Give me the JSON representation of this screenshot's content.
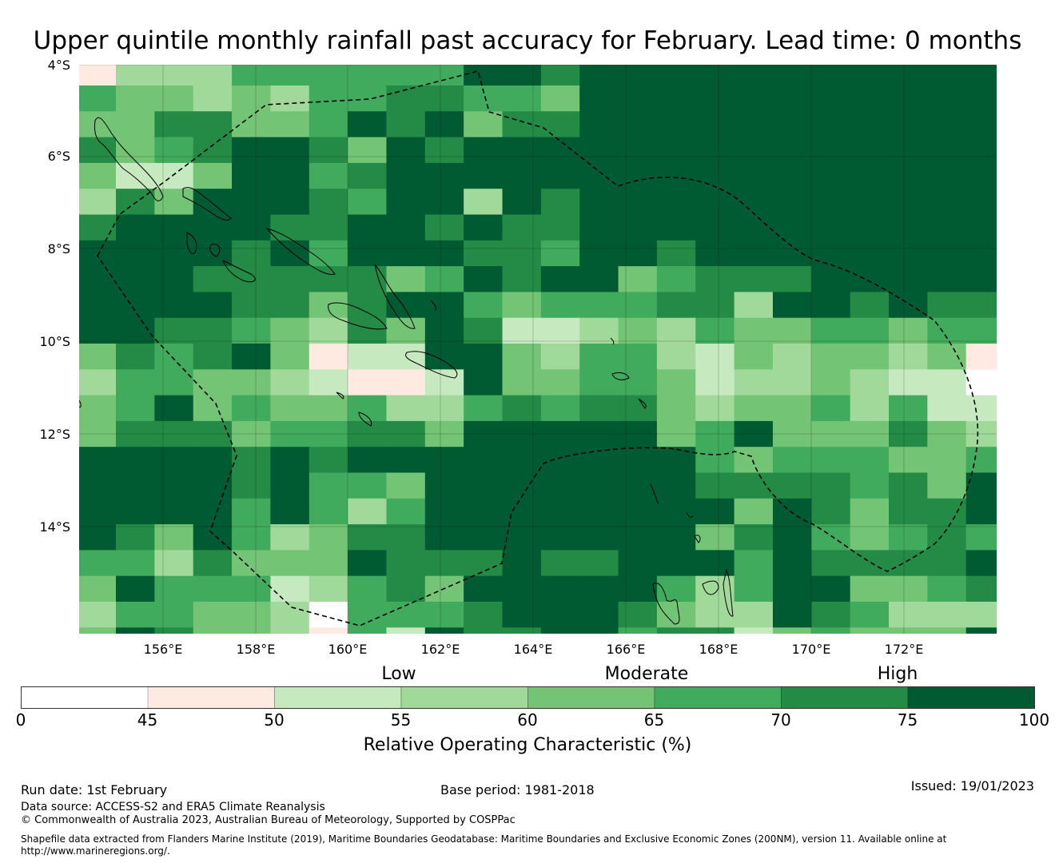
{
  "title": "Upper quintile monthly rainfall past accuracy for February. Lead time: 0 months",
  "lat_labels": [
    "4°S",
    "6°S",
    "8°S",
    "10°S",
    "12°S",
    "14°S"
  ],
  "lon_labels": [
    "156°E",
    "158°E",
    "160°E",
    "162°E",
    "164°E",
    "166°E",
    "168°E",
    "170°E",
    "172°E"
  ],
  "legend": {
    "categories": [
      "Low",
      "Moderate",
      "High"
    ],
    "ticks": [
      "0",
      "45",
      "50",
      "55",
      "60",
      "65",
      "70",
      "75",
      "100"
    ],
    "colors": [
      "#ffffff",
      "#feeae0",
      "#c7e9c0",
      "#a1d99b",
      "#74c476",
      "#41ab5d",
      "#238b45",
      "#005a32"
    ],
    "label": "Relative Operating Characteristic (%)"
  },
  "footer": {
    "run_date": "Run date: 1st February",
    "base_period": "Base period: 1981-2018",
    "issued": "Issued: 19/01/2023",
    "data_source": "Data source: ACCESS-S2 and ERA5 Climate Reanalysis",
    "copyright": "© Commonwealth of Australia 2023, Australian Bureau of Meteorology, Supported by COSPPac",
    "shapefile_1": "Shapefile data extracted from Flanders Marine Institute (2019), Maritime Boundaries Geodatabase: Maritime Boundaries and Exclusive Economic Zones (200NM), version 11. Available online at",
    "shapefile_2": "http://www.marineregions.org/."
  },
  "chart_data": {
    "type": "heatmap",
    "title": "Upper quintile monthly rainfall past accuracy for February. Lead time: 0 months",
    "lon_range": [
      154.2,
      174.0
    ],
    "lat_range": [
      -16.3,
      -4.0
    ],
    "bins": [
      0,
      45,
      50,
      55,
      60,
      65,
      70,
      75,
      100
    ],
    "note": "grid rows north to south, west to east; digit = bin index (0: <45, 1: 45-50, ... 7: 75-100)",
    "grid": [
      "133355555577677777777777",
      "544343556655477777777777",
      "446644576746677777777777",
      "645677647677777777777777",
      "422477567777777777777777",
      "364777657737677777777777",
      "677776677676677777777777",
      "777767577766577677777777",
      "777666664576774566677777",
      "777766467754555663776766",
      "776654364762234354455455",
      "465674122774355324344341",
      "355443211274455423343220",
      "457454453356566434453522",
      "466645566477777457444643",
      "777767677777777754555445",
      "777767554777777766665647",
      "777757535777777774764667",
      "764753466777777746754565",
      "553644476667667775766667",
      "475552356477777535774456",
      "355443055567776433765333",
      "476443152766775662454447"
    ]
  }
}
